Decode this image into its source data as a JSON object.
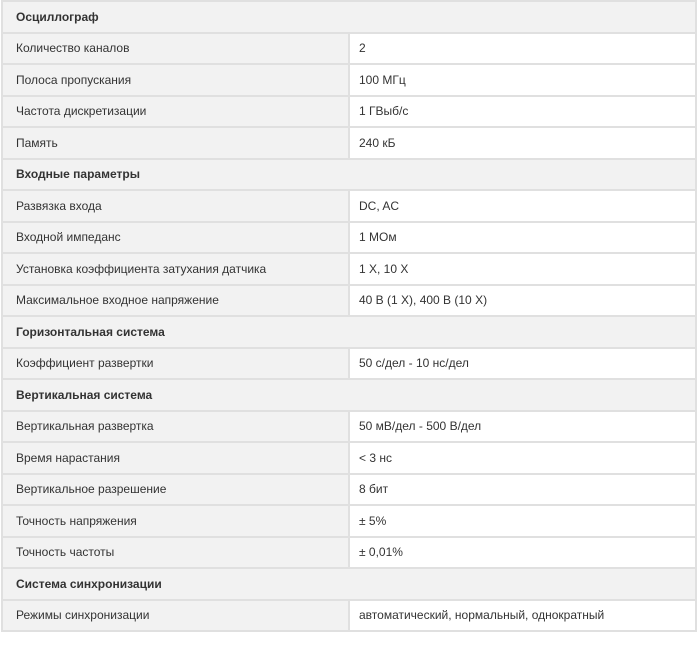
{
  "sections": [
    {
      "title": "Осциллограф",
      "rows": [
        [
          "Количество каналов",
          "2"
        ],
        [
          "Полоса пропускания",
          "100 МГц"
        ],
        [
          "Частота дискретизации",
          "1 ГВыб/с"
        ],
        [
          "Память",
          "240 кБ"
        ]
      ]
    },
    {
      "title": "Входные параметры",
      "rows": [
        [
          "Развязка входа",
          "DC, AC"
        ],
        [
          "Входной импеданс",
          "1 МОм"
        ],
        [
          "Установка коэффициента затухания датчика",
          "1 X, 10 X"
        ],
        [
          "Максимальное входное напряжение",
          "40 В (1 X), 400 В (10 X)"
        ]
      ]
    },
    {
      "title": "Горизонтальная система",
      "rows": [
        [
          "Коэффициент развертки",
          "50 с/дел - 10 нс/дел"
        ]
      ]
    },
    {
      "title": "Вертикальная система",
      "rows": [
        [
          "Вертикальная развертка",
          "50 мВ/дел - 500 В/дел"
        ],
        [
          "Время нарастания",
          "< 3 нс"
        ],
        [
          "Вертикальное разрешение",
          "8 бит"
        ],
        [
          "Точность напряжения",
          "± 5%"
        ],
        [
          "Точность частоты",
          "± 0,01%"
        ]
      ]
    },
    {
      "title": "Система синхронизации",
      "rows": [
        [
          "Режимы синхронизации",
          "автоматический, нормальный, однократный"
        ]
      ]
    }
  ]
}
